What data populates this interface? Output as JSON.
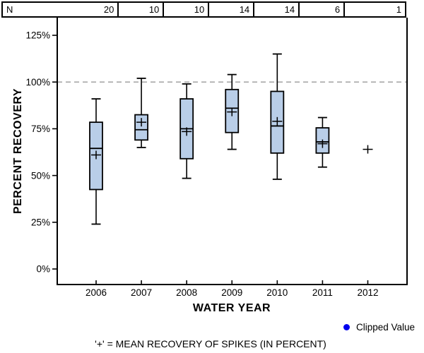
{
  "header_table": {
    "label": "N",
    "counts": [
      "20",
      "10",
      "10",
      "14",
      "14",
      "6",
      "1"
    ]
  },
  "chart_data": {
    "type": "boxplot",
    "xlabel": "WATER YEAR",
    "ylabel": "PERCENT RECOVERY",
    "categories": [
      "2006",
      "2007",
      "2008",
      "2009",
      "2010",
      "2011",
      "2012"
    ],
    "n_values": [
      20,
      10,
      10,
      14,
      14,
      6,
      1
    ],
    "yticks": [
      0,
      25,
      50,
      75,
      100,
      125
    ],
    "ytick_labels": [
      "0%",
      "25%",
      "50%",
      "75%",
      "100%",
      "125%"
    ],
    "ylim": [
      -9,
      134
    ],
    "grid": false,
    "reference_line": {
      "value": 100,
      "style": "dashed"
    },
    "series": [
      {
        "category": "2006",
        "n": 20,
        "low": 24,
        "q1": 42.5,
        "median": 64.5,
        "mean": 61,
        "q3": 78.5,
        "high": 91
      },
      {
        "category": "2007",
        "n": 10,
        "low": 65,
        "q1": 69,
        "median": 74.5,
        "mean": 78.5,
        "q3": 82.5,
        "high": 102
      },
      {
        "category": "2008",
        "n": 10,
        "low": 48.5,
        "q1": 59,
        "median": 75,
        "mean": 73.5,
        "q3": 91,
        "high": 99
      },
      {
        "category": "2009",
        "n": 14,
        "low": 64,
        "q1": 73,
        "median": 86,
        "mean": 84,
        "q3": 96,
        "high": 104
      },
      {
        "category": "2010",
        "n": 14,
        "low": 48,
        "q1": 62,
        "median": 76.5,
        "mean": 79,
        "q3": 95,
        "high": 115
      },
      {
        "category": "2011",
        "n": 6,
        "low": 54.5,
        "q1": 62,
        "median": 68,
        "mean": 67,
        "q3": 75.5,
        "high": 81
      },
      {
        "category": "2012",
        "n": 1,
        "mean": 64
      }
    ],
    "colors": {
      "box_fill": "#b9cee8",
      "box_border": "#000000",
      "reference": "#999999",
      "axis": "#000000"
    }
  },
  "legend": {
    "label": "Clipped Value",
    "color": "#0000ee"
  },
  "footnote": "'+' = MEAN RECOVERY OF SPIKES (IN PERCENT)"
}
